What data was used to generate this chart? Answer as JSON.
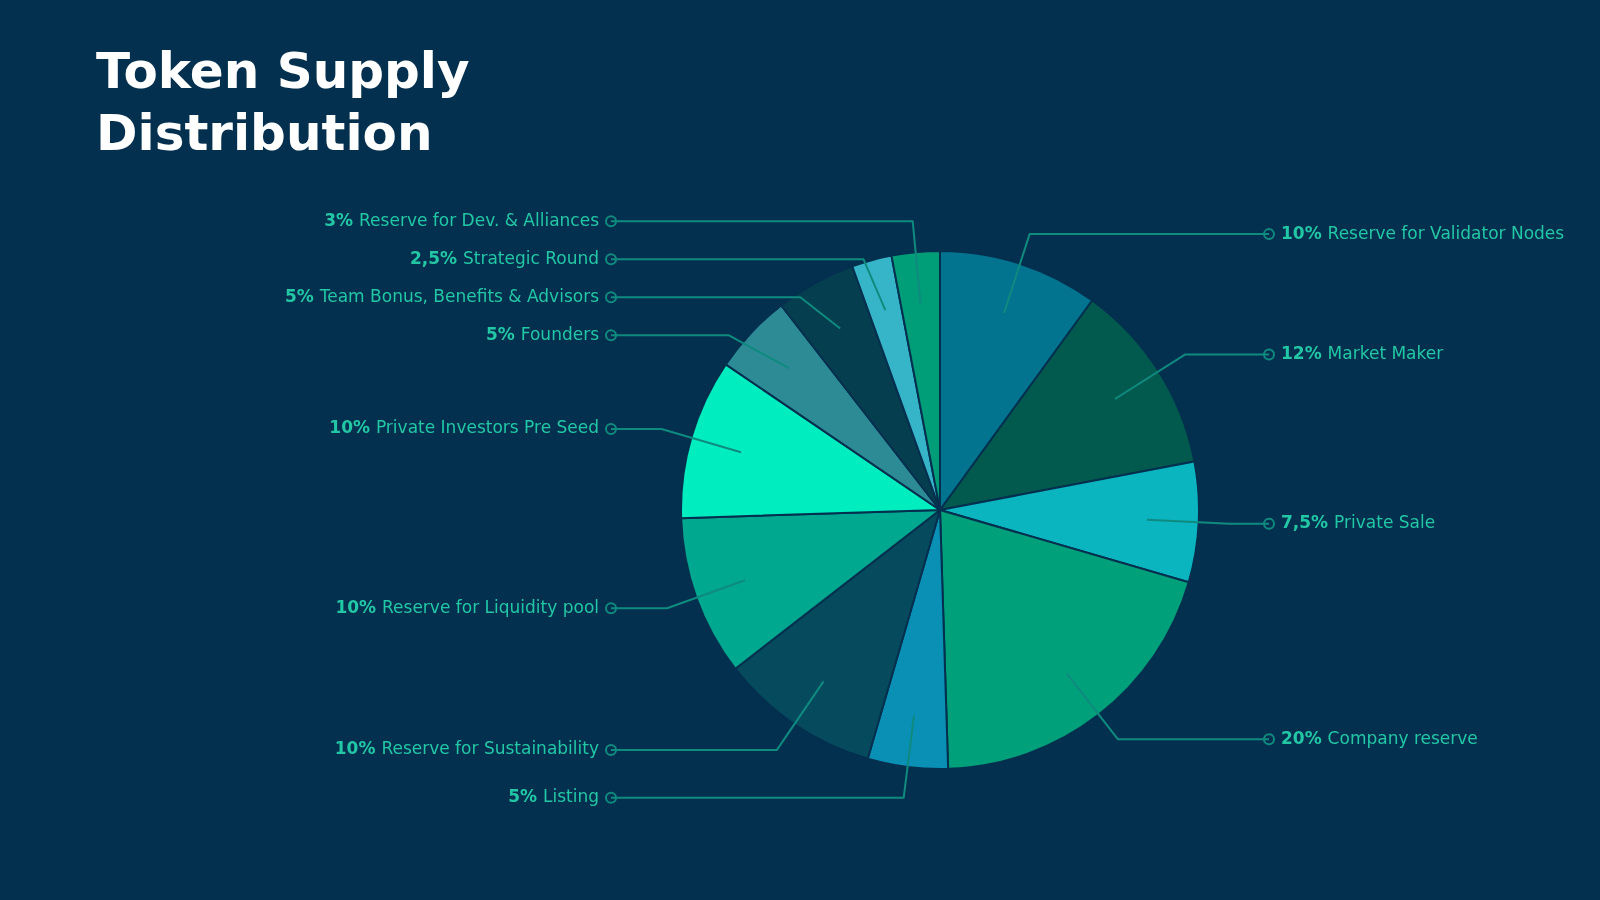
{
  "chart_data": {
    "type": "pie",
    "title": "Token Supply Distribution",
    "categories": [
      "Reserve for Validator Nodes",
      "Market Maker",
      "Private Sale",
      "Company reserve",
      "Listing",
      "Reserve for Sustainability",
      "Reserve for Liquidity pool",
      "Private Investors Pre Seed",
      "Founders",
      "Team Bonus, Benefits & Advisors",
      "Strategic Round",
      "Reserve for Dev. & Alliances"
    ],
    "values": [
      10,
      12,
      7.5,
      20,
      5,
      10,
      10,
      10,
      5,
      5,
      2.5,
      3
    ],
    "value_labels": [
      "10%",
      "12%",
      "7,5%",
      "20%",
      "5%",
      "10%",
      "10%",
      "10%",
      "5%",
      "5%",
      "2,5%",
      "3%"
    ],
    "colors": [
      "#03748f",
      "#025a4e",
      "#0ab5c0",
      "#00a07a",
      "#0a8fb5",
      "#064a5e",
      "#00a88f",
      "#00edc0",
      "#2d8b96",
      "#053f4f",
      "#37b5c8",
      "#009e78"
    ],
    "legend": false
  }
}
